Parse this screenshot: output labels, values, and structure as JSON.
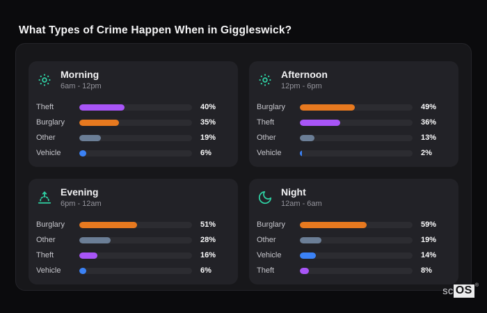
{
  "title": "What Types of Crime Happen When in Giggleswick?",
  "brand": {
    "prefix": "sc",
    "badge": "OS",
    "registered": "®"
  },
  "colors": {
    "icon_accent": "#2fd3a5",
    "theft": "#a855f7",
    "burglary": "#e7791f",
    "other": "#6b7e96",
    "vehicle": "#3b82f6",
    "page_background": "#0b0b0d",
    "board_background": "#17171a",
    "card_background": "#222227",
    "track_background": "#2c2c31"
  },
  "chart_data": [
    {
      "type": "bar",
      "orientation": "horizontal",
      "title": "Morning",
      "subtitle": "6am - 12pm",
      "icon": "sun-icon",
      "categories": [
        "Theft",
        "Burglary",
        "Other",
        "Vehicle"
      ],
      "values": [
        40,
        35,
        19,
        6
      ],
      "value_suffix": "%",
      "xlim": [
        0,
        100
      ],
      "bar_colors": [
        "#a855f7",
        "#e7791f",
        "#6b7e96",
        "#3b82f6"
      ]
    },
    {
      "type": "bar",
      "orientation": "horizontal",
      "title": "Afternoon",
      "subtitle": "12pm - 6pm",
      "icon": "sun-icon",
      "categories": [
        "Burglary",
        "Theft",
        "Other",
        "Vehicle"
      ],
      "values": [
        49,
        36,
        13,
        2
      ],
      "value_suffix": "%",
      "xlim": [
        0,
        100
      ],
      "bar_colors": [
        "#e7791f",
        "#a855f7",
        "#6b7e96",
        "#3b82f6"
      ]
    },
    {
      "type": "bar",
      "orientation": "horizontal",
      "title": "Evening",
      "subtitle": "6pm - 12am",
      "icon": "sunset-icon",
      "categories": [
        "Burglary",
        "Other",
        "Theft",
        "Vehicle"
      ],
      "values": [
        51,
        28,
        16,
        6
      ],
      "value_suffix": "%",
      "xlim": [
        0,
        100
      ],
      "bar_colors": [
        "#e7791f",
        "#6b7e96",
        "#a855f7",
        "#3b82f6"
      ]
    },
    {
      "type": "bar",
      "orientation": "horizontal",
      "title": "Night",
      "subtitle": "12am - 6am",
      "icon": "moon-icon",
      "categories": [
        "Burglary",
        "Other",
        "Vehicle",
        "Theft"
      ],
      "values": [
        59,
        19,
        14,
        8
      ],
      "value_suffix": "%",
      "xlim": [
        0,
        100
      ],
      "bar_colors": [
        "#e7791f",
        "#6b7e96",
        "#3b82f6",
        "#a855f7"
      ]
    }
  ]
}
